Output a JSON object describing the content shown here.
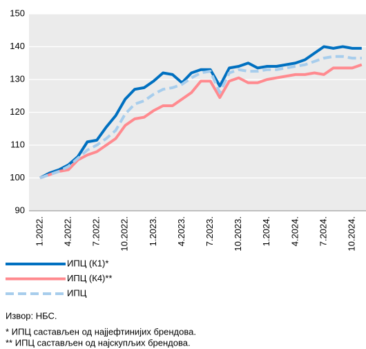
{
  "chart_data": {
    "type": "line",
    "categories": [
      "1.2022.",
      null,
      null,
      "4.2022.",
      null,
      null,
      "7.2022.",
      null,
      null,
      "10.2022.",
      null,
      null,
      "1.2023.",
      null,
      null,
      "4.2023.",
      null,
      null,
      "7.2023.",
      null,
      null,
      "10.2023.",
      null,
      null,
      "1.2024.",
      null,
      null,
      "4.2024.",
      null,
      null,
      "7.2024.",
      null,
      null,
      "10.2024.",
      null
    ],
    "series": [
      {
        "name": "ИПЦ (К1)*",
        "color": "#0070c0",
        "dash": false,
        "values": [
          100,
          101.5,
          102.5,
          104,
          106.5,
          111,
          111.5,
          115.5,
          119,
          124,
          127,
          127.5,
          129.5,
          132,
          131.5,
          129,
          132,
          133,
          133,
          128,
          133.5,
          134,
          135,
          133.5,
          134,
          134,
          134.5,
          135,
          136,
          138,
          140,
          139.5,
          140,
          139.5,
          139.5
        ]
      },
      {
        "name": "ИПЦ (К4)**",
        "color": "#ff8a8f",
        "dash": false,
        "values": [
          100,
          101,
          102,
          102.5,
          105.5,
          107,
          108,
          110,
          112,
          116,
          118,
          118.5,
          120.5,
          122,
          122,
          124,
          126,
          129.5,
          129.5,
          124.5,
          129.5,
          130.5,
          129,
          129,
          130,
          130.5,
          131,
          131.5,
          131.5,
          132,
          131.5,
          133.5,
          133.5,
          133.5,
          134.5
        ]
      },
      {
        "name": "ИПЦ",
        "color": "#a7cdec",
        "dash": true,
        "values": [
          100,
          101,
          102,
          103.5,
          106,
          108.5,
          110,
          112,
          114.5,
          119.5,
          122.5,
          123.5,
          125.5,
          127,
          127.5,
          128.5,
          130.5,
          132,
          132.5,
          126,
          132,
          133,
          132.5,
          132.5,
          133,
          133,
          133.5,
          134,
          134.5,
          135.5,
          136.5,
          137,
          137,
          136.5,
          136.5
        ]
      }
    ],
    "ylim": [
      90,
      150
    ],
    "yticks": [
      90,
      100,
      110,
      120,
      130,
      140,
      150
    ],
    "grid": true,
    "source": "Извор: НБС.",
    "notes": [
      "* ИПЦ састављен од најјефтинијих брендова.",
      "** ИПЦ састављен од најскупљих брендова."
    ]
  }
}
